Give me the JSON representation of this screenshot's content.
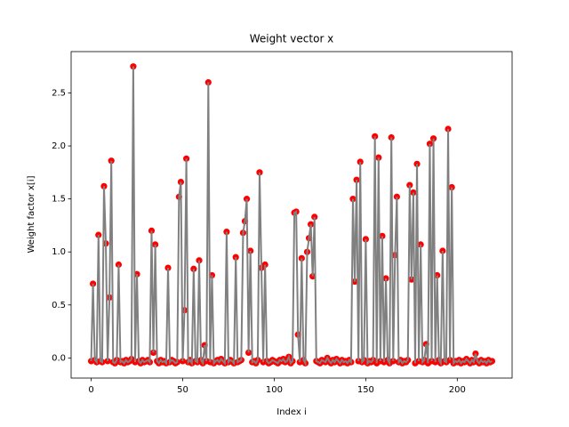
{
  "chart_data": {
    "type": "line",
    "title": "Weight vector x",
    "xlabel": "Index i",
    "ylabel": "Weight factor x[i]",
    "line_color": "gray",
    "marker_color": "red",
    "xlim": [
      -10.95,
      229.95
    ],
    "ylim": [
      -0.19,
      2.89
    ],
    "xticks": [
      0,
      50,
      100,
      150,
      200
    ],
    "yticks": [
      {
        "value": 0,
        "label": "0.0"
      },
      0.5,
      {
        "value": 1,
        "label": "1.0"
      },
      1.5,
      {
        "value": 2,
        "label": "2.0"
      },
      2.5
    ],
    "x": [
      0,
      1,
      2,
      3,
      4,
      5,
      6,
      7,
      8,
      9,
      10,
      11,
      12,
      13,
      14,
      15,
      16,
      17,
      18,
      19,
      20,
      21,
      22,
      23,
      24,
      25,
      26,
      27,
      28,
      29,
      30,
      31,
      32,
      33,
      34,
      35,
      36,
      37,
      38,
      39,
      40,
      41,
      42,
      43,
      44,
      45,
      46,
      47,
      48,
      49,
      50,
      51,
      52,
      53,
      54,
      55,
      56,
      57,
      58,
      59,
      60,
      61,
      62,
      63,
      64,
      65,
      66,
      67,
      68,
      69,
      70,
      71,
      72,
      73,
      74,
      75,
      76,
      77,
      78,
      79,
      80,
      81,
      82,
      83,
      84,
      85,
      86,
      87,
      88,
      89,
      90,
      91,
      92,
      93,
      94,
      95,
      96,
      97,
      98,
      99,
      100,
      101,
      102,
      103,
      104,
      105,
      106,
      107,
      108,
      109,
      110,
      111,
      112,
      113,
      114,
      115,
      116,
      117,
      118,
      119,
      120,
      121,
      122,
      123,
      124,
      125,
      126,
      127,
      128,
      129,
      130,
      131,
      132,
      133,
      134,
      135,
      136,
      137,
      138,
      139,
      140,
      141,
      142,
      143,
      144,
      145,
      146,
      147,
      148,
      149,
      150,
      151,
      152,
      153,
      154,
      155,
      156,
      157,
      158,
      159,
      160,
      161,
      162,
      163,
      164,
      165,
      166,
      167,
      168,
      169,
      170,
      171,
      172,
      173,
      174,
      175,
      176,
      177,
      178,
      179,
      180,
      181,
      182,
      183,
      184,
      185,
      186,
      187,
      188,
      189,
      190,
      191,
      192,
      193,
      194,
      195,
      196,
      197,
      198,
      199,
      200,
      201,
      202,
      203,
      204,
      205,
      206,
      207,
      208,
      209,
      210,
      211,
      212,
      213,
      214,
      215,
      216,
      217,
      218,
      219
    ],
    "series": [
      {
        "values": [
          -0.03,
          0.7,
          -0.02,
          -0.04,
          1.16,
          -0.03,
          -0.04,
          1.62,
          1.08,
          -0.03,
          0.57,
          1.86,
          -0.04,
          -0.05,
          -0.02,
          0.88,
          -0.04,
          -0.03,
          -0.05,
          -0.02,
          -0.04,
          -0.03,
          -0.01,
          2.75,
          -0.04,
          0.79,
          -0.03,
          -0.05,
          -0.02,
          -0.04,
          -0.03,
          -0.02,
          -0.04,
          1.2,
          0.05,
          1.07,
          -0.03,
          -0.05,
          -0.02,
          -0.04,
          -0.03,
          -0.05,
          0.85,
          -0.04,
          -0.02,
          -0.03,
          -0.05,
          -0.04,
          1.52,
          1.66,
          -0.03,
          0.45,
          1.88,
          -0.04,
          -0.02,
          -0.05,
          0.84,
          -0.03,
          -0.04,
          0.92,
          -0.02,
          -0.05,
          0.12,
          -0.03,
          2.6,
          -0.04,
          0.78,
          -0.05,
          -0.03,
          -0.02,
          -0.04,
          -0.01,
          -0.03,
          -0.05,
          1.19,
          -0.04,
          -0.02,
          -0.03,
          -0.05,
          0.95,
          -0.04,
          -0.03,
          -0.02,
          1.18,
          1.29,
          1.5,
          0.05,
          1.01,
          -0.04,
          -0.03,
          -0.05,
          -0.02,
          1.75,
          0.85,
          -0.04,
          0.88,
          -0.03,
          -0.05,
          -0.04,
          -0.02,
          -0.03,
          -0.04,
          -0.05,
          -0.02,
          -0.03,
          -0.01,
          -0.04,
          -0.03,
          0.01,
          -0.05,
          -0.03,
          1.37,
          1.38,
          0.22,
          -0.04,
          0.94,
          -0.02,
          -0.05,
          1.0,
          1.13,
          1.26,
          0.77,
          1.33,
          -0.03,
          -0.04,
          -0.05,
          -0.02,
          -0.03,
          -0.04,
          0.0,
          -0.03,
          -0.05,
          -0.02,
          -0.04,
          -0.01,
          -0.03,
          -0.05,
          -0.02,
          -0.04,
          -0.03,
          -0.05,
          -0.02,
          -0.04,
          1.5,
          0.72,
          1.68,
          -0.03,
          1.85,
          -0.04,
          -0.02,
          1.12,
          -0.05,
          -0.03,
          -0.04,
          -0.02,
          2.09,
          -0.05,
          1.89,
          -0.03,
          1.15,
          -0.04,
          0.75,
          -0.02,
          -0.05,
          2.08,
          -0.03,
          0.97,
          1.52,
          -0.04,
          -0.02,
          -0.05,
          -0.03,
          -0.04,
          -0.02,
          1.63,
          0.74,
          1.56,
          -0.05,
          1.83,
          -0.03,
          1.07,
          -0.04,
          -0.02,
          0.13,
          -0.05,
          2.02,
          -0.03,
          2.07,
          -0.04,
          0.78,
          -0.02,
          -0.05,
          1.01,
          -0.03,
          -0.04,
          2.16,
          -0.02,
          1.61,
          -0.05,
          -0.03,
          -0.04,
          -0.02,
          -0.05,
          -0.03,
          -0.04,
          -0.01,
          -0.03,
          -0.05,
          -0.02,
          -0.04,
          0.04,
          -0.03,
          -0.05,
          -0.02,
          -0.04,
          -0.03,
          -0.05,
          -0.02,
          -0.04,
          -0.03
        ]
      }
    ]
  }
}
